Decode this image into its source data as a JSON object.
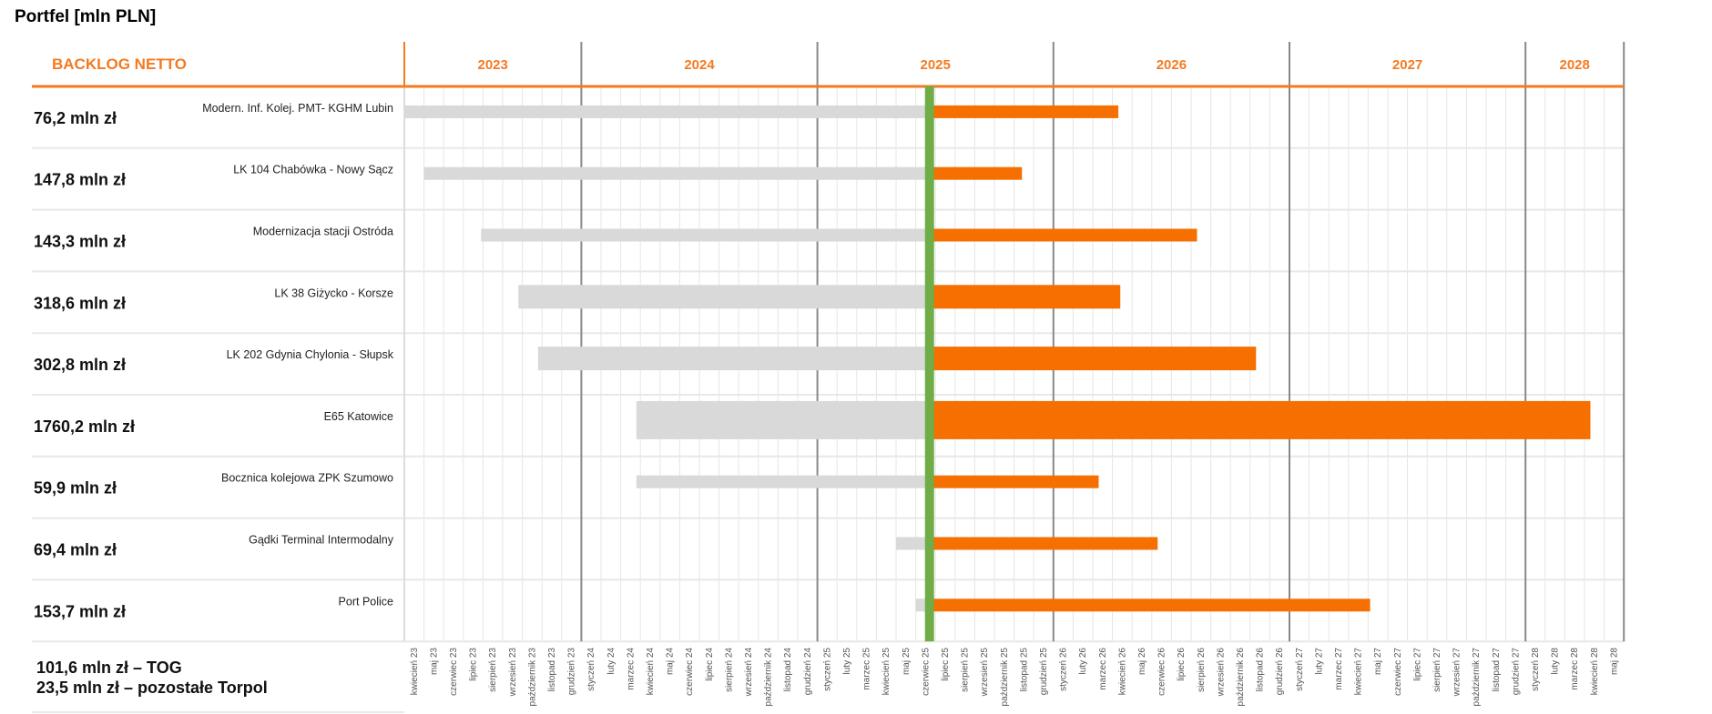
{
  "title": "Portfel [mln PLN]",
  "chart_data": {
    "type": "gantt",
    "title": "Portfel [mln PLN]",
    "header_label": "BACKLOG NETTO",
    "years": [
      {
        "label": "2023",
        "months": 9
      },
      {
        "label": "2024",
        "months": 12
      },
      {
        "label": "2025",
        "months": 12
      },
      {
        "label": "2026",
        "months": 12
      },
      {
        "label": "2027",
        "months": 12
      },
      {
        "label": "2028",
        "months": 5
      }
    ],
    "months": [
      "kwiecień 23",
      "maj 23",
      "czerwiec 23",
      "lipiec 23",
      "sierpień 23",
      "wrzesień 23",
      "październik 23",
      "listopad 23",
      "grudzień 23",
      "styczeń 24",
      "luty 24",
      "marzec 24",
      "kwiecień 24",
      "maj 24",
      "czerwiec 24",
      "lipiec 24",
      "sierpień 24",
      "wrzesień 24",
      "październik 24",
      "listopad 24",
      "grudzień 24",
      "styczeń 25",
      "luty 25",
      "marzec 25",
      "kwiecień 25",
      "maj 25",
      "czerwiec 25",
      "lipiec 25",
      "sierpień 25",
      "wrzesień 25",
      "październik 25",
      "listopad 25",
      "grudzień 25",
      "styczeń 26",
      "luty 26",
      "marzec 26",
      "kwiecień 26",
      "maj 26",
      "czerwiec 26",
      "lipiec 26",
      "sierpień 26",
      "wrzesień 26",
      "październik 26",
      "listopad 26",
      "grudzień 26",
      "styczeń 27",
      "luty 27",
      "marzec 27",
      "kwiecień 27",
      "maj 27",
      "czerwiec 27",
      "lipiec 27",
      "sierpień 27",
      "wrzesień 27",
      "październik 27",
      "listopad 27",
      "grudzień 27",
      "styczeń 28",
      "luty 28",
      "marzec 28",
      "kwiecień 28",
      "maj 28"
    ],
    "current_month_index": 26.7,
    "units": "months from kwiecień 23",
    "projects": [
      {
        "value": "76,2 mln zł",
        "name": "Modern. Inf. Kolej. PMT- KGHM Lubin",
        "start": 0.0,
        "end": 36.3
      },
      {
        "value": "147,8 mln zł",
        "name": "LK 104 Chabówka - Nowy Sącz",
        "start": 1.0,
        "end": 31.4
      },
      {
        "value": "143,3 mln zł",
        "name": "Modernizacja stacji Ostróda",
        "start": 3.9,
        "end": 40.3
      },
      {
        "value": "318,6 mln zł",
        "name": "LK 38 Giżycko - Korsze",
        "start": 5.8,
        "end": 36.4
      },
      {
        "value": "302,8 mln zł",
        "name": "LK 202 Gdynia Chylonia - Słupsk",
        "start": 6.8,
        "end": 43.3
      },
      {
        "value": "1760,2 mln zł",
        "name": "E65 Katowice",
        "start": 11.8,
        "end": 60.3
      },
      {
        "value": "59,9 mln zł",
        "name": "Bocznica kolejowa ZPK Szumowo",
        "start": 11.8,
        "end": 35.3
      },
      {
        "value": "69,4 mln zł",
        "name": "Gądki Terminal Intermodalny",
        "start": 25.0,
        "end": 38.3
      },
      {
        "value": "153,7 mln zł",
        "name": "Port Police",
        "start": 26.0,
        "end": 49.1
      }
    ],
    "notes": [
      "101,6 mln zł – TOG",
      "23,5 mln zł – pozostałe Torpol"
    ],
    "colors": {
      "past": "#d9d9d9",
      "future": "#f57000",
      "now": "#70ad47",
      "accent": "#f47a20",
      "grid": "#e6e6e6",
      "year_line": "#888888"
    }
  }
}
